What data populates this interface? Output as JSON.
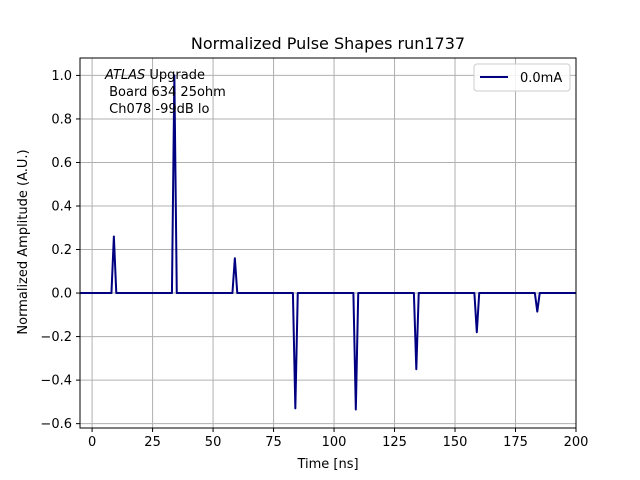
{
  "chart_data": {
    "type": "line",
    "title": "Normalized Pulse Shapes run1737",
    "xlabel": "Time [ns]",
    "ylabel": "Normalized Amplitude (A.U.)",
    "xlim": [
      -5,
      200
    ],
    "ylim": [
      -0.62,
      1.08
    ],
    "xticks": [
      0,
      25,
      50,
      75,
      100,
      125,
      150,
      175,
      200
    ],
    "yticks": [
      -0.6,
      -0.4,
      -0.2,
      0.0,
      0.2,
      0.4,
      0.6,
      0.8,
      1.0
    ],
    "xtick_labels": [
      "0",
      "25",
      "50",
      "75",
      "100",
      "125",
      "150",
      "175",
      "200"
    ],
    "ytick_labels": [
      "−0.6",
      "−0.4",
      "−0.2",
      "0.0",
      "0.2",
      "0.4",
      "0.6",
      "0.8",
      "1.0"
    ],
    "grid": true,
    "legend_position": "top-right",
    "annotation": {
      "italic": "ATLAS",
      "line1_rest": " Upgrade",
      "line2": " Board 634 25ohm",
      "line3": " Ch078 -99dB lo"
    },
    "series": [
      {
        "name": "0.0mA",
        "color": "#000080",
        "x": [
          -5,
          8,
          9,
          10,
          33,
          34,
          35,
          58,
          59,
          60,
          83,
          84,
          85,
          108,
          109,
          110,
          133,
          134,
          135,
          158,
          159,
          160,
          183,
          184,
          185,
          200
        ],
        "y": [
          0,
          0,
          0.26,
          0,
          0,
          1.0,
          0,
          0,
          0.16,
          0,
          0,
          -0.53,
          0,
          0,
          -0.535,
          0,
          0,
          -0.35,
          0,
          0,
          -0.18,
          0,
          0,
          -0.085,
          0,
          0
        ]
      }
    ]
  }
}
